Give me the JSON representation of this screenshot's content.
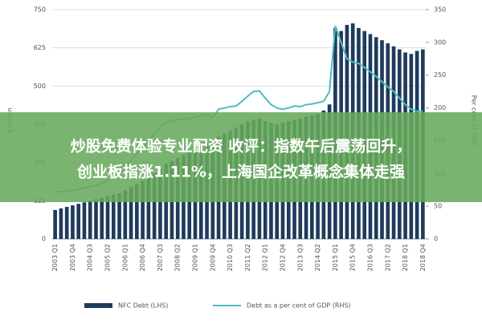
{
  "chart_data": {
    "type": "bar-line",
    "y_label": "$ billion",
    "y2_label": "Per cent of GDP",
    "categories": [
      "2003 Q1",
      null,
      null,
      "2003 Q4",
      null,
      null,
      "2004 Q3",
      null,
      null,
      "2005 Q2",
      null,
      null,
      "2006 Q1",
      null,
      null,
      "2006 Q4",
      null,
      null,
      "2007 Q3",
      null,
      null,
      "2008 Q2",
      null,
      null,
      "2009 Q1",
      null,
      null,
      "2009 Q4",
      null,
      null,
      "2010 Q3",
      null,
      null,
      "2011 Q2",
      null,
      null,
      "2012 Q1",
      null,
      null,
      "2012 Q4",
      null,
      null,
      "2013 Q3",
      null,
      null,
      "2014 Q2",
      null,
      null,
      "2015 Q1",
      null,
      null,
      "2015 Q4",
      null,
      null,
      "2016 Q3",
      null,
      null,
      "2017 Q2",
      null,
      null,
      "2018 Q1",
      null,
      null,
      "2018 Q4"
    ],
    "series": [
      {
        "name": "NFC Debt (LHS)",
        "color": "#1f3b5c",
        "axis": "y",
        "values": [
          95,
          100,
          105,
          110,
          115,
          120,
          125,
          130,
          135,
          140,
          145,
          150,
          160,
          170,
          180,
          190,
          200,
          215,
          230,
          245,
          255,
          265,
          275,
          285,
          295,
          305,
          315,
          325,
          335,
          345,
          355,
          365,
          375,
          385,
          390,
          395,
          385,
          380,
          375,
          380,
          385,
          390,
          395,
          400,
          405,
          410,
          420,
          440,
          690,
          680,
          700,
          705,
          690,
          680,
          670,
          660,
          650,
          640,
          630,
          620,
          610,
          605,
          615,
          620
        ]
      },
      {
        "name": "Debt as a per cent of GDP (RHS)",
        "color": "#4dbdc0",
        "axis": "y2",
        "values": [
          72,
          72,
          73,
          74,
          76,
          78,
          80,
          82,
          85,
          90,
          95,
          100,
          110,
          120,
          130,
          140,
          150,
          160,
          170,
          178,
          180,
          182,
          183,
          184,
          186,
          188,
          190,
          185,
          198,
          200,
          202,
          203,
          210,
          218,
          225,
          226,
          215,
          205,
          200,
          198,
          200,
          203,
          202,
          205,
          206,
          208,
          210,
          225,
          325,
          300,
          275,
          270,
          268,
          262,
          255,
          248,
          240,
          232,
          225,
          215,
          205,
          198,
          195,
          195
        ]
      }
    ],
    "ylim": [
      0,
      750
    ],
    "yticks": [
      0,
      125,
      250,
      375,
      500,
      625,
      750
    ],
    "y2lim": [
      0,
      350
    ],
    "y2ticks": [
      0,
      50,
      100,
      150,
      200,
      250,
      300,
      350
    ],
    "grid": true
  },
  "banner": {
    "lines": [
      "炒股免费体验专业配资 收评：指数午后震荡回升，",
      "创业板指涨1.11%，上海国企改革概念集体走强"
    ]
  }
}
